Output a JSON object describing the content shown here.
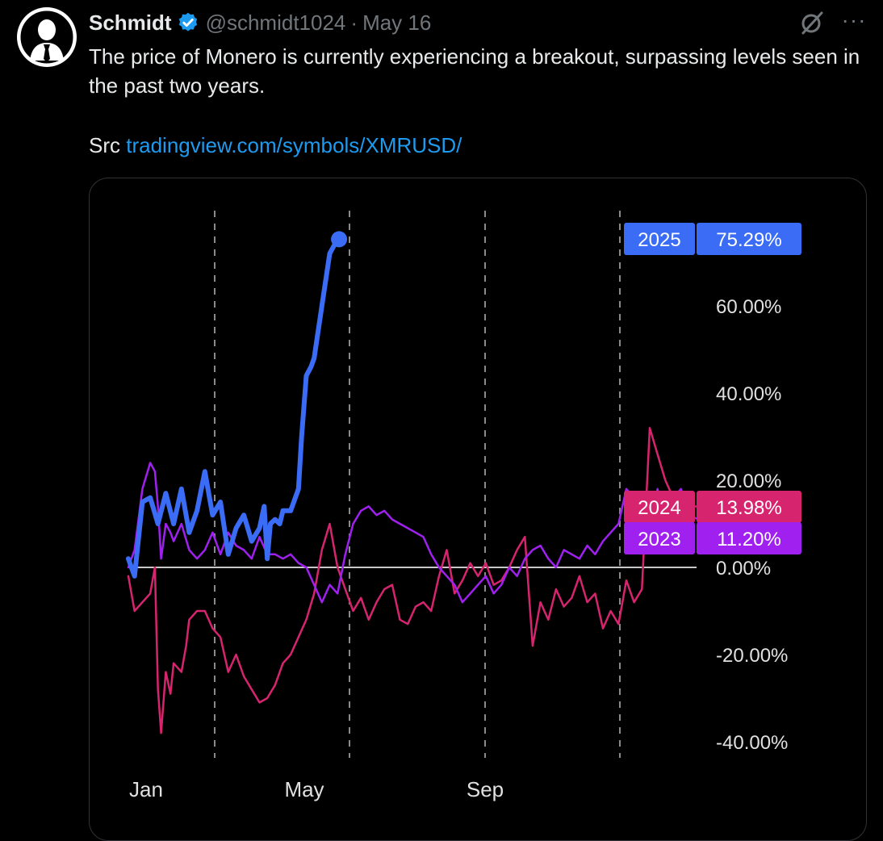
{
  "tweet": {
    "author_name": "Schmidt",
    "handle": "@schmidt1024",
    "separator": "·",
    "date": "May 16",
    "more_label": "···",
    "text": "The price of Monero is currently experiencing a breakout, surpassing levels seen in the past two years.",
    "src_prefix": "Src",
    "link_text": "tradingview.com/symbols/XMRUSD/"
  },
  "colors": {
    "background": "#000000",
    "link": "#1d9bf0",
    "verified": "#1d9bf0",
    "series_2025": "#3b6cf6",
    "series_2024": "#d6246e",
    "series_2023": "#a020f0"
  },
  "icons": [
    "avatar-icon",
    "verified-icon",
    "grok-icon",
    "more-icon"
  ],
  "chart_data": {
    "type": "line",
    "title": "",
    "xlabel": "",
    "ylabel": "",
    "x_ticks": [
      "Jan",
      "May",
      "Sep"
    ],
    "y_ticks": [
      "60.00%",
      "40.00%",
      "20.00%",
      "0.00%",
      "-20.00%",
      "-40.00%"
    ],
    "y_tick_values": [
      60,
      40,
      20,
      0,
      -20,
      -40
    ],
    "ylim": [
      -40,
      80
    ],
    "grid": "vertical dashed lines at period boundaries",
    "x_unit": "day of year",
    "series": [
      {
        "name": "2025",
        "color": "#3b6cf6",
        "end_label": "75.29%",
        "x": [
          1,
          5,
          10,
          15,
          20,
          25,
          30,
          35,
          40,
          45,
          50,
          55,
          60,
          65,
          70,
          75,
          80,
          85,
          88,
          90,
          92,
          95,
          98,
          100,
          105,
          110,
          112,
          115,
          118,
          120,
          125,
          130,
          133,
          135,
          136
        ],
        "y": [
          2,
          -2,
          15,
          16,
          10,
          17,
          10,
          18,
          8,
          13,
          22,
          12,
          15,
          3,
          9,
          12,
          6,
          9,
          14,
          2,
          10,
          11,
          10,
          13,
          13,
          18,
          30,
          44,
          46,
          48,
          60,
          72,
          74,
          75,
          75.29
        ]
      },
      {
        "name": "2024",
        "color": "#d6246e",
        "end_label": "13.98%",
        "x": [
          1,
          5,
          10,
          15,
          18,
          20,
          22,
          25,
          28,
          30,
          35,
          38,
          40,
          45,
          50,
          55,
          60,
          65,
          70,
          75,
          80,
          85,
          90,
          95,
          100,
          105,
          110,
          115,
          120,
          125,
          130,
          135,
          140,
          145,
          150,
          155,
          160,
          165,
          170,
          175,
          180,
          185,
          190,
          195,
          200,
          205,
          210,
          215,
          220,
          225,
          230,
          235,
          240,
          245,
          250,
          255,
          260,
          265,
          270,
          275,
          280,
          285,
          290,
          295,
          300,
          305,
          310,
          315,
          320,
          325,
          330,
          335,
          340,
          345,
          350,
          355,
          360,
          365
        ],
        "y": [
          -2,
          -10,
          -8,
          -6,
          0,
          -28,
          -38,
          -24,
          -29,
          -22,
          -24,
          -18,
          -12,
          -10,
          -10,
          -14,
          -16,
          -24,
          -20,
          -25,
          -28,
          -31,
          -30,
          -27,
          -22,
          -20,
          -16,
          -12,
          -6,
          4,
          10,
          0,
          -5,
          -10,
          -7,
          -12,
          -8,
          -5,
          -4,
          -12,
          -13,
          -9,
          -8,
          -10,
          -2,
          4,
          -6,
          -3,
          1,
          -2,
          1,
          -4,
          -3,
          0,
          4,
          7,
          -18,
          -8,
          -12,
          -5,
          -9,
          -7,
          -2,
          -8,
          -6,
          -14,
          -10,
          -13,
          -3,
          -8,
          -5,
          32,
          26,
          20,
          16,
          13,
          14,
          13.98
        ]
      },
      {
        "name": "2023",
        "color": "#a020f0",
        "end_label": "11.20%",
        "x": [
          1,
          5,
          10,
          15,
          18,
          20,
          22,
          25,
          28,
          30,
          35,
          40,
          45,
          50,
          55,
          60,
          65,
          70,
          75,
          80,
          85,
          90,
          95,
          100,
          105,
          110,
          115,
          120,
          125,
          130,
          135,
          140,
          145,
          150,
          155,
          160,
          165,
          170,
          175,
          180,
          185,
          190,
          195,
          200,
          205,
          210,
          215,
          220,
          225,
          230,
          235,
          240,
          245,
          250,
          255,
          260,
          265,
          270,
          275,
          280,
          285,
          290,
          295,
          300,
          305,
          310,
          315,
          320,
          325,
          330,
          335,
          340,
          345,
          350,
          355,
          360,
          365
        ],
        "y": [
          0,
          4,
          18,
          24,
          22,
          14,
          2,
          10,
          8,
          6,
          10,
          4,
          2,
          4,
          8,
          3,
          8,
          5,
          4,
          2,
          7,
          3,
          3,
          2,
          3,
          1,
          0,
          -4,
          -8,
          -4,
          -6,
          3,
          10,
          13,
          14,
          12,
          13,
          11,
          10,
          9,
          8,
          7,
          3,
          0,
          -2,
          -4,
          -8,
          -6,
          -4,
          -2,
          -6,
          -4,
          0,
          -2,
          2,
          4,
          5,
          2,
          0,
          4,
          3,
          2,
          5,
          3,
          6,
          8,
          10,
          18,
          16,
          12,
          8,
          18,
          11,
          16,
          18,
          12,
          11.2
        ]
      }
    ],
    "end_labels": [
      {
        "year": "2025",
        "value": "75.29%",
        "value_num": 75.29
      },
      {
        "year": "2024",
        "value": "13.98%",
        "value_num": 13.98
      },
      {
        "year": "2023",
        "value": "11.20%",
        "value_num": 11.2
      }
    ]
  }
}
